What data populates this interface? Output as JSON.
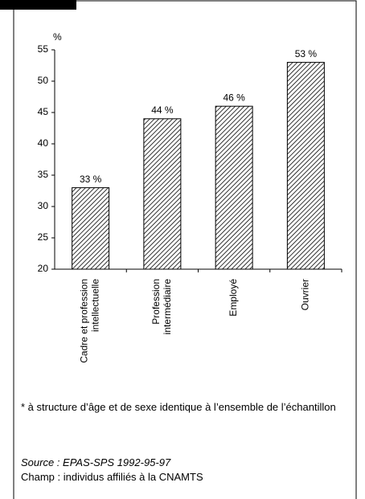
{
  "chart_data": {
    "type": "bar",
    "y_label": "%",
    "categories": [
      "Cadre et profession\nintellectuelle",
      "Profession\nintermédiaire",
      "Employé",
      "Ouvrier"
    ],
    "values": [
      33,
      44,
      46,
      53
    ],
    "value_labels": [
      "33 %",
      "44 %",
      "46 %",
      "53 %"
    ],
    "color": "#000000",
    "ylim": [
      20,
      55
    ],
    "yticks": [
      20,
      25,
      30,
      35,
      40,
      45,
      50,
      55
    ],
    "grid": false
  },
  "footnote": "* à structure d’âge et de sexe identique à l’ensemble de l’échantillon",
  "source": "Source : EPAS-SPS 1992-95-97",
  "scope": "Champ : individus affiliés à la CNAMTS"
}
